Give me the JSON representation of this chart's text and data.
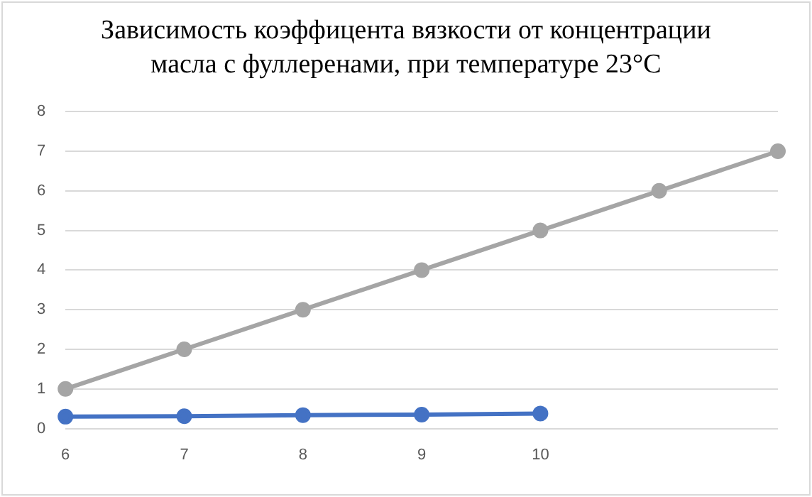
{
  "chart_data": {
    "type": "line",
    "title": "Зависимость коэффицента вязкости от концентрации масла с фуллеренами, при температуре 23°C",
    "categories": [
      "6",
      "7",
      "8",
      "9",
      "10",
      null,
      null
    ],
    "series": [
      {
        "color": "#4472c4",
        "values": [
          0.3,
          0.31,
          0.34,
          0.35,
          0.38,
          null,
          null
        ]
      },
      {
        "color": "#a5a5a5",
        "values": [
          1,
          2,
          3,
          4,
          5,
          6,
          7
        ]
      }
    ],
    "ylim": [
      0,
      8
    ],
    "yticks": [
      0,
      1,
      2,
      3,
      4,
      5,
      6,
      7,
      8
    ],
    "grid": "y",
    "legend": false,
    "marker": "circle",
    "line_style": "solid"
  }
}
